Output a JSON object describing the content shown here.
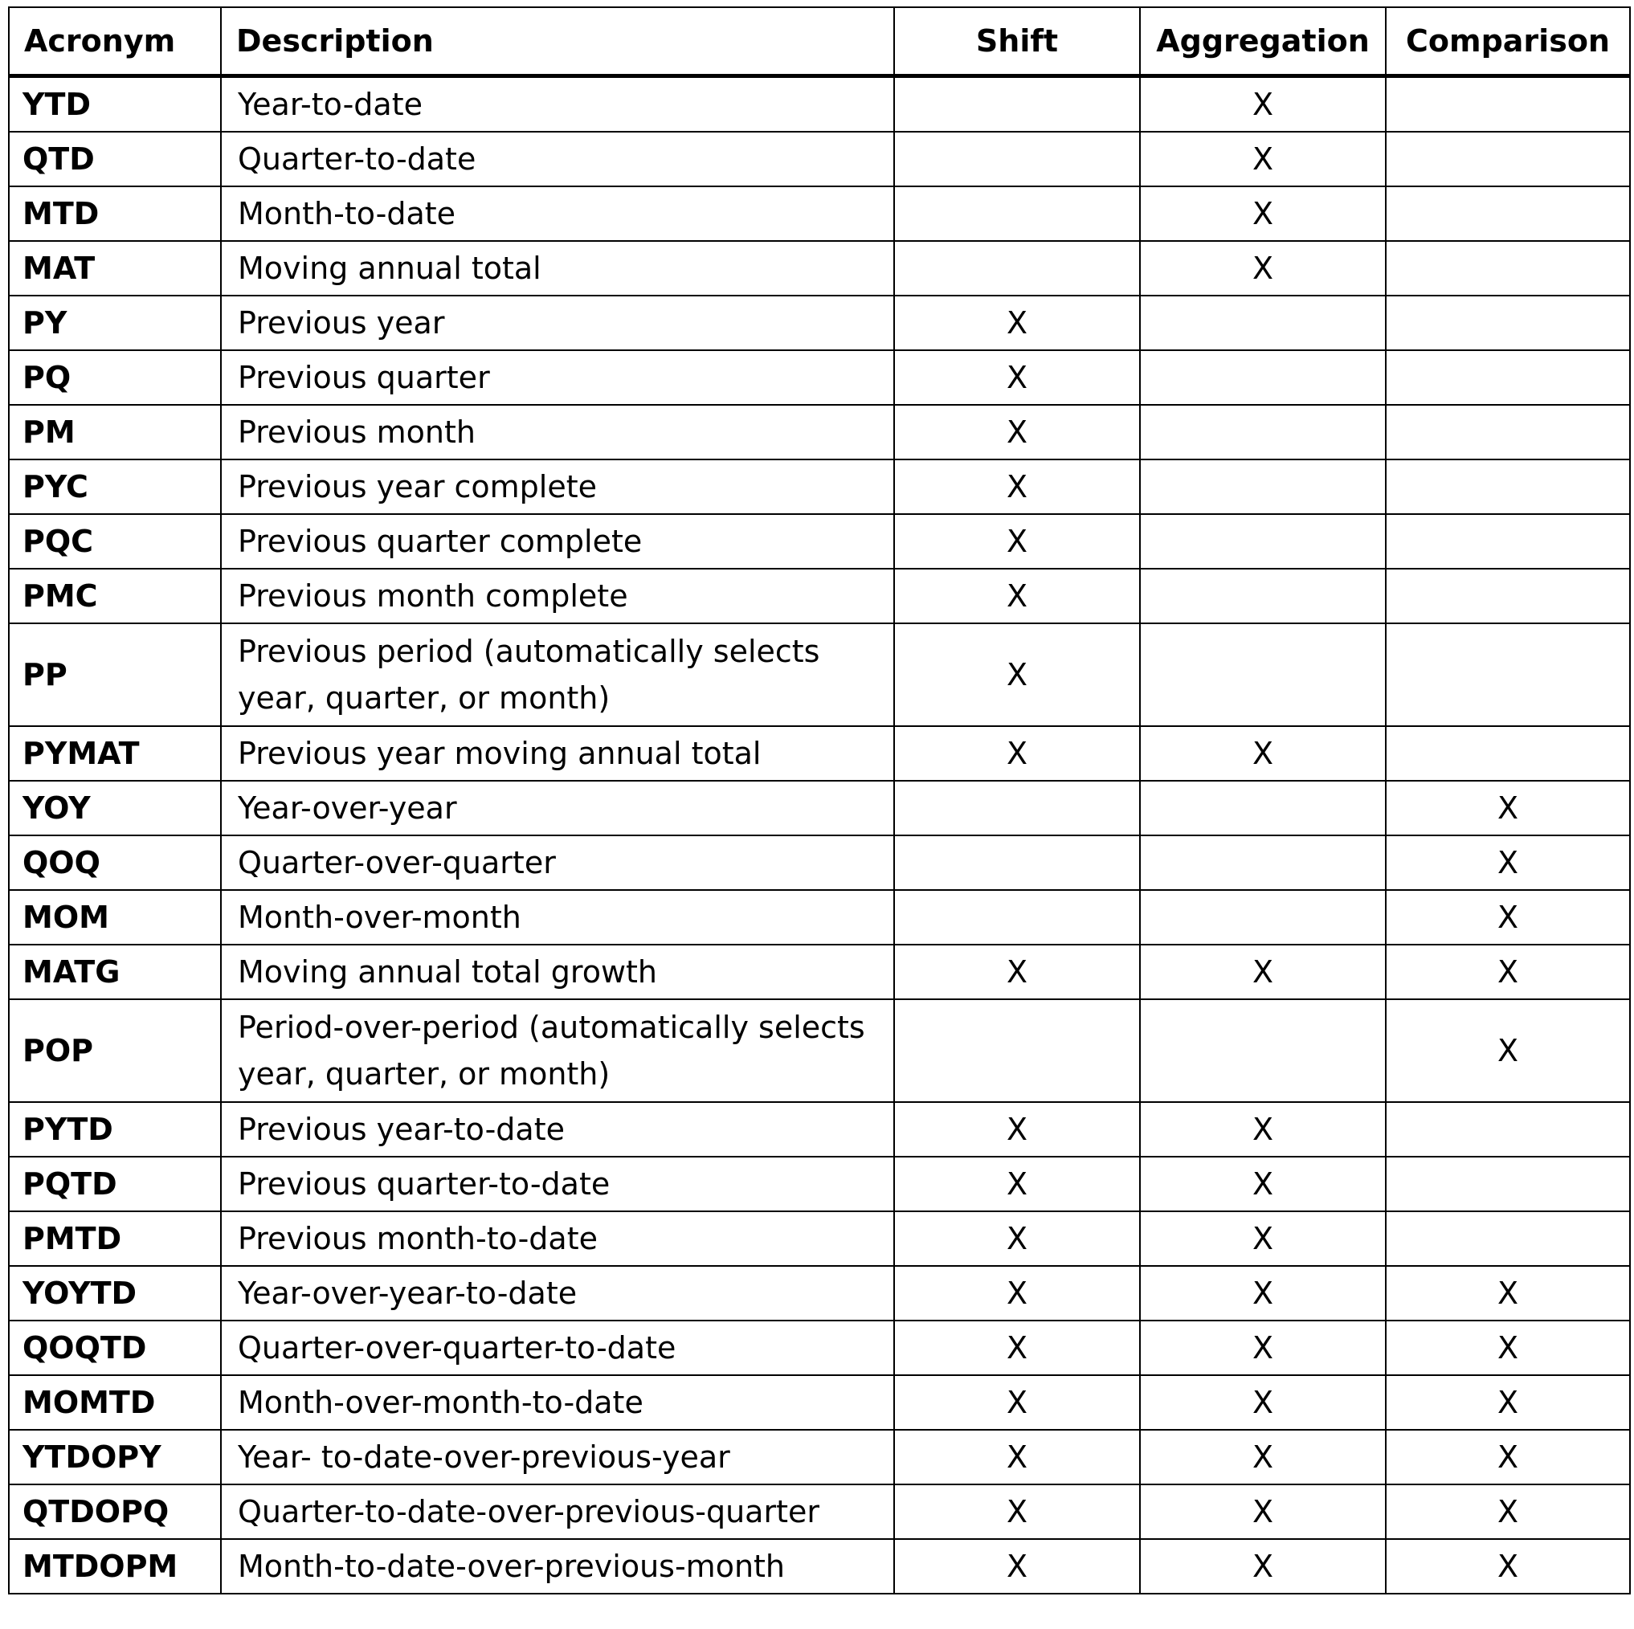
{
  "table": {
    "headers": {
      "acronym": "Acronym",
      "description": "Description",
      "shift": "Shift",
      "aggregation": "Aggregation",
      "comparison": "Comparison"
    },
    "rows": [
      {
        "acronym": "YTD",
        "description": "Year-to-date",
        "shift": "",
        "aggregation": "X",
        "comparison": ""
      },
      {
        "acronym": "QTD",
        "description": "Quarter-to-date",
        "shift": "",
        "aggregation": "X",
        "comparison": ""
      },
      {
        "acronym": "MTD",
        "description": "Month-to-date",
        "shift": "",
        "aggregation": "X",
        "comparison": ""
      },
      {
        "acronym": "MAT",
        "description": "Moving annual total",
        "shift": "",
        "aggregation": "X",
        "comparison": ""
      },
      {
        "acronym": "PY",
        "description": "Previous year",
        "shift": "X",
        "aggregation": "",
        "comparison": ""
      },
      {
        "acronym": "PQ",
        "description": "Previous quarter",
        "shift": "X",
        "aggregation": "",
        "comparison": ""
      },
      {
        "acronym": "PM",
        "description": "Previous month",
        "shift": "X",
        "aggregation": "",
        "comparison": ""
      },
      {
        "acronym": "PYC",
        "description": "Previous year complete",
        "shift": "X",
        "aggregation": "",
        "comparison": ""
      },
      {
        "acronym": "PQC",
        "description": "Previous quarter complete",
        "shift": "X",
        "aggregation": "",
        "comparison": ""
      },
      {
        "acronym": "PMC",
        "description": "Previous month complete",
        "shift": "X",
        "aggregation": "",
        "comparison": ""
      },
      {
        "acronym": "PP",
        "description": "Previous period (automatically selects year, quarter, or month)",
        "shift": "X",
        "aggregation": "",
        "comparison": ""
      },
      {
        "acronym": "PYMAT",
        "description": "Previous year moving annual total",
        "shift": "X",
        "aggregation": "X",
        "comparison": ""
      },
      {
        "acronym": "YOY",
        "description": "Year-over-year",
        "shift": "",
        "aggregation": "",
        "comparison": "X"
      },
      {
        "acronym": "QOQ",
        "description": "Quarter-over-quarter",
        "shift": "",
        "aggregation": "",
        "comparison": "X"
      },
      {
        "acronym": "MOM",
        "description": "Month-over-month",
        "shift": "",
        "aggregation": "",
        "comparison": "X"
      },
      {
        "acronym": "MATG",
        "description": "Moving annual total growth",
        "shift": "X",
        "aggregation": "X",
        "comparison": "X"
      },
      {
        "acronym": "POP",
        "description": "Period-over-period (automatically selects year, quarter, or month)",
        "shift": "",
        "aggregation": "",
        "comparison": "X"
      },
      {
        "acronym": "PYTD",
        "description": "Previous year-to-date",
        "shift": "X",
        "aggregation": "X",
        "comparison": ""
      },
      {
        "acronym": "PQTD",
        "description": "Previous quarter-to-date",
        "shift": "X",
        "aggregation": "X",
        "comparison": ""
      },
      {
        "acronym": "PMTD",
        "description": "Previous month-to-date",
        "shift": "X",
        "aggregation": "X",
        "comparison": ""
      },
      {
        "acronym": "YOYTD",
        "description": "Year-over-year-to-date",
        "shift": "X",
        "aggregation": "X",
        "comparison": "X"
      },
      {
        "acronym": "QOQTD",
        "description": "Quarter-over-quarter-to-date",
        "shift": "X",
        "aggregation": "X",
        "comparison": "X"
      },
      {
        "acronym": "MOMTD",
        "description": "Month-over-month-to-date",
        "shift": "X",
        "aggregation": "X",
        "comparison": "X"
      },
      {
        "acronym": "YTDOPY",
        "description": "Year- to-date-over-previous-year",
        "shift": "X",
        "aggregation": "X",
        "comparison": "X"
      },
      {
        "acronym": "QTDOPQ",
        "description": "Quarter-to-date-over-previous-quarter",
        "shift": "X",
        "aggregation": "X",
        "comparison": "X"
      },
      {
        "acronym": "MTDOPM",
        "description": "Month-to-date-over-previous-month",
        "shift": "X",
        "aggregation": "X",
        "comparison": "X"
      }
    ]
  }
}
